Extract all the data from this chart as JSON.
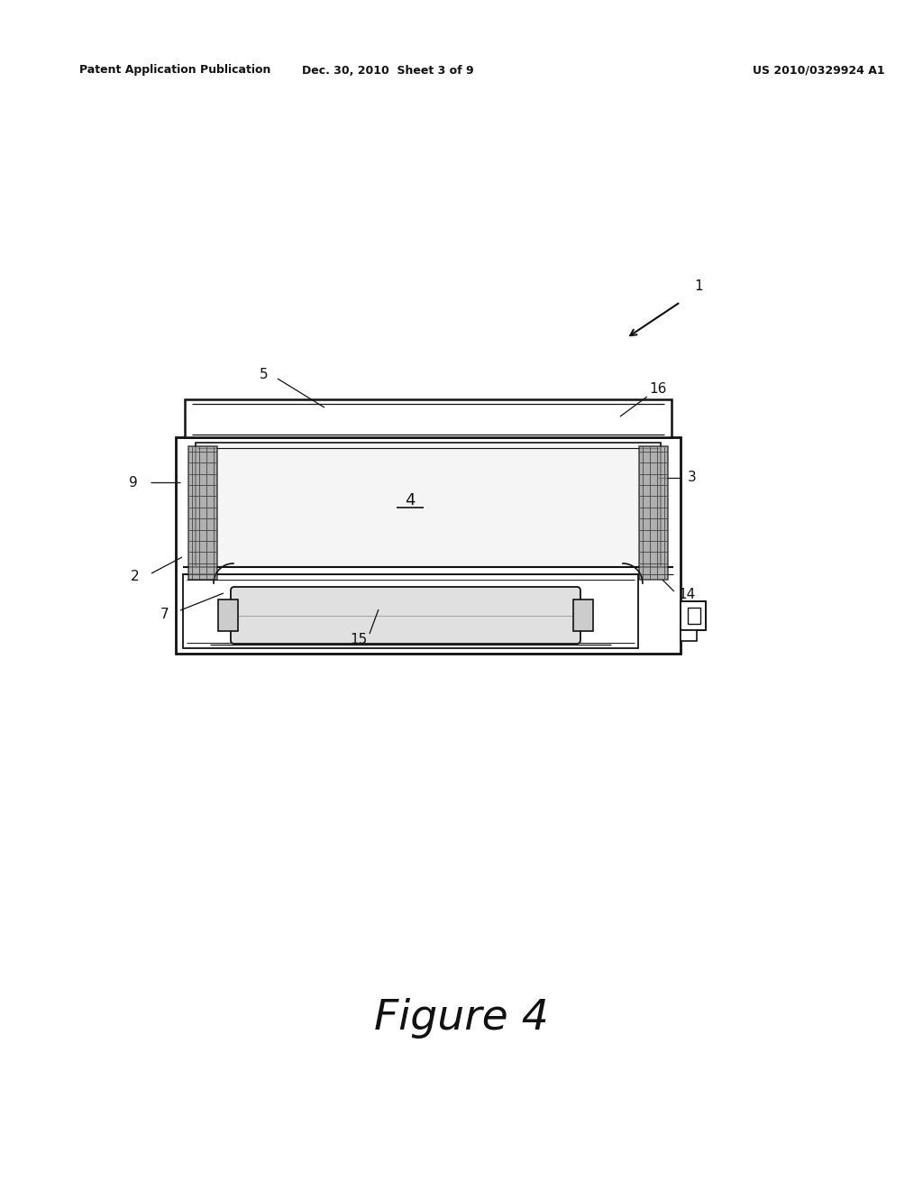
{
  "bg_color": "#ffffff",
  "header_left": "Patent Application Publication",
  "header_mid": "Dec. 30, 2010  Sheet 3 of 9",
  "header_right": "US 2010/0329924 A1",
  "figure_label": "Figure 4",
  "dark": "#111111",
  "gray_sponge": "#999999",
  "inner_fill": "#f5f5f5",
  "lamp_fill": "#e0e0e0",
  "header_fontsize": 9,
  "label_fontsize": 11,
  "figure_fontsize": 34
}
